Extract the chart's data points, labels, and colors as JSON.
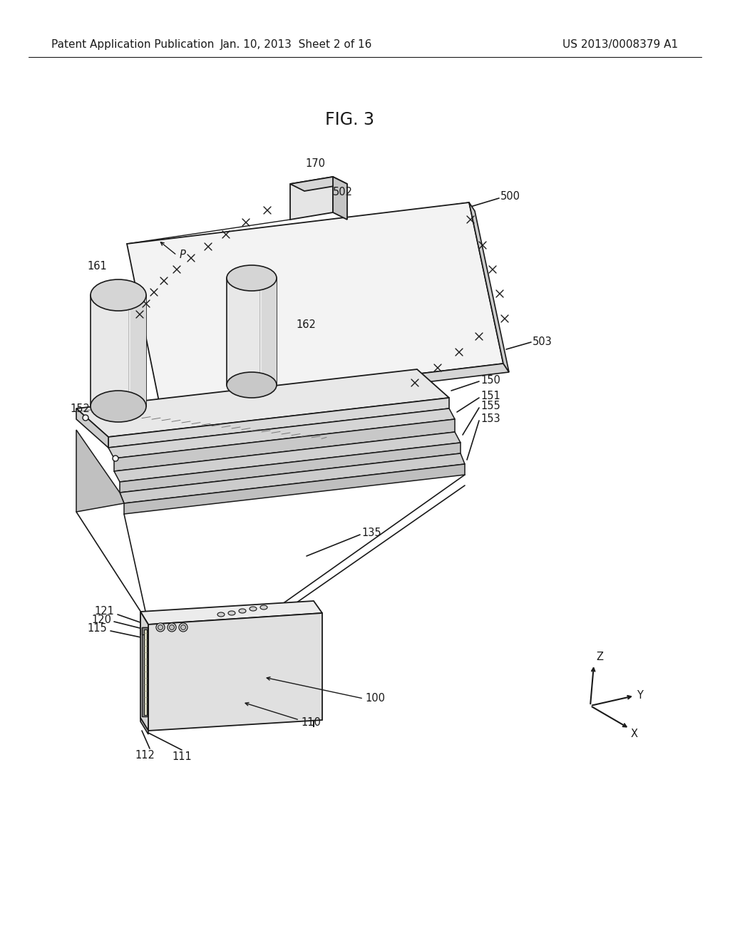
{
  "header_left": "Patent Application Publication",
  "header_mid": "Jan. 10, 2013  Sheet 2 of 16",
  "header_right": "US 2013/0008379 A1",
  "title": "FIG. 3",
  "bg_color": "#ffffff",
  "line_color": "#1a1a1a",
  "lf": 10.5
}
